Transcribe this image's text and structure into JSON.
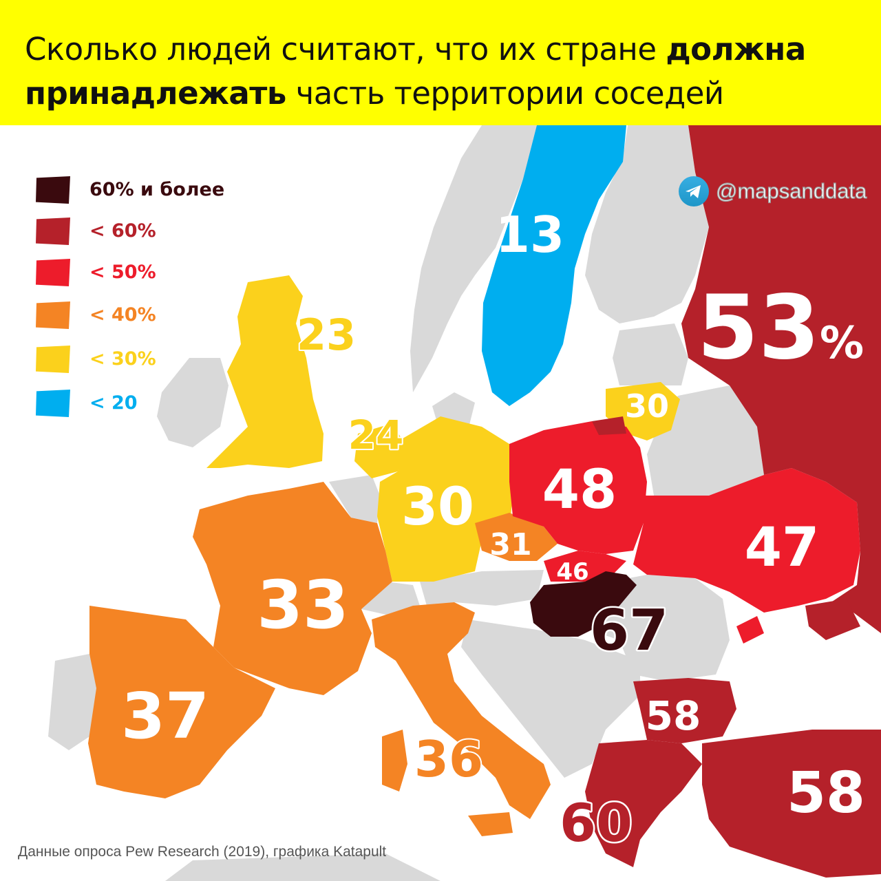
{
  "title": {
    "part1": "Сколько людей считают, что их стране ",
    "bold1": "должна",
    "bold2": "принадлежать",
    "part2": " часть территории соседей"
  },
  "handle": {
    "text": "@mapsanddata",
    "icon": "telegram-icon",
    "icon_color": "#2aa3db"
  },
  "legend": [
    {
      "label": "60% и более",
      "color": "#3a0a0e",
      "text_color": "#3a0a0e"
    },
    {
      "label": "< 60%",
      "color": "#b5212a",
      "text_color": "#b5212a"
    },
    {
      "label": "< 50%",
      "color": "#ed1c2b",
      "text_color": "#ed1c2b"
    },
    {
      "label": "< 40%",
      "color": "#f48424",
      "text_color": "#f48424"
    },
    {
      "label": "< 30%",
      "color": "#fbd11c",
      "text_color": "#fbd11c"
    },
    {
      "label": "< 20",
      "color": "#00aeef",
      "text_color": "#00aeef"
    }
  ],
  "countries": {
    "sweden": "13",
    "united_kingdom": "23",
    "netherlands": "24",
    "germany": "30",
    "lithuania": "30",
    "czechia": "31",
    "france": "33",
    "italy": "36",
    "spain": "37",
    "slovakia": "46",
    "ukraine": "47",
    "poland": "48",
    "russia": "53",
    "russia_suffix": "%",
    "bulgaria": "58",
    "turkey": "58",
    "greece": "60",
    "hungary": "67"
  },
  "colors": {
    "header": "#ffff00",
    "land_nodata": "#d9d9d9",
    "sea": "#ffffff"
  },
  "source": "Данные опроса Pew Research (2019), графика Katapult"
}
